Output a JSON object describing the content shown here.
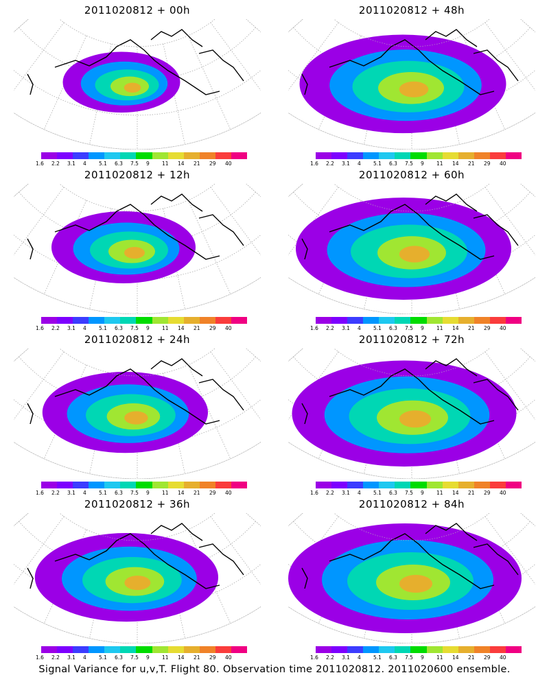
{
  "panels": [
    {
      "title": "2011020812 + 00h",
      "spread": 0.35
    },
    {
      "title": "2011020812 + 48h",
      "spread": 0.85
    },
    {
      "title": "2011020812 + 12h",
      "spread": 0.5
    },
    {
      "title": "2011020812 + 60h",
      "spread": 0.9
    },
    {
      "title": "2011020812 + 24h",
      "spread": 0.62
    },
    {
      "title": "2011020812 + 72h",
      "spread": 0.95
    },
    {
      "title": "2011020812 + 36h",
      "spread": 0.72
    },
    {
      "title": "2011020812 + 84h",
      "spread": 1.0
    }
  ],
  "colorbar": {
    "labels": [
      "1.6",
      "2.2",
      "3.1",
      "4",
      "5.1",
      "6.3",
      "7.5",
      "9",
      "11",
      "14",
      "21",
      "29",
      "40"
    ],
    "colors": [
      "#9b00e6",
      "#7d00ff",
      "#3c3cff",
      "#0096ff",
      "#1ec8f0",
      "#00d7b4",
      "#00dc00",
      "#a0e632",
      "#e6dc32",
      "#e6af2d",
      "#f08228",
      "#fa3c3c",
      "#f00082"
    ]
  },
  "footer": "Signal Variance for u,v,T. Flight 80. Observation time 2011020812. 2011020600 ensemble."
}
